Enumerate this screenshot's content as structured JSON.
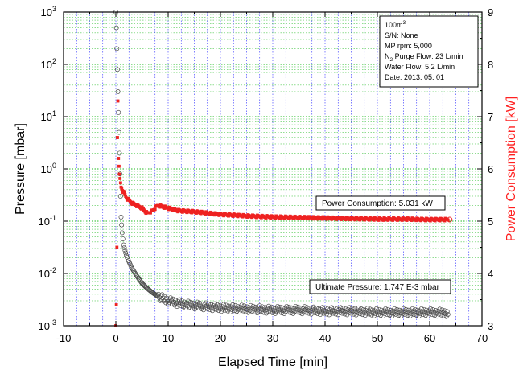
{
  "chart_data": {
    "type": "scatter",
    "xlabel": "Elapsed Time [min]",
    "ylabel_left": "Pressure [mbar]",
    "ylabel_right": "Power Consumption [kW]",
    "xlim": [
      -10,
      70
    ],
    "x_ticks": [
      "-10",
      "0",
      "10",
      "20",
      "30",
      "40",
      "50",
      "60",
      "70"
    ],
    "ylim_left": [
      0.001,
      1000
    ],
    "y_scale_left": "log",
    "y_ticks_left": [
      {
        "base": "10",
        "exp": "3"
      },
      {
        "base": "10",
        "exp": "2"
      },
      {
        "base": "10",
        "exp": "1"
      },
      {
        "base": "10",
        "exp": "0"
      },
      {
        "base": "10",
        "exp": "-1"
      },
      {
        "base": "10",
        "exp": "-2"
      },
      {
        "base": "10",
        "exp": "-3"
      }
    ],
    "ylim_right": [
      3,
      9
    ],
    "y_ticks_right": [
      "9",
      "8",
      "7",
      "6",
      "5",
      "4",
      "3"
    ],
    "grid": true,
    "colors": {
      "pressure": "#4a4a4a",
      "power": "#ee2222",
      "grid_x": "#2a2aff",
      "grid_y": "#22bb22",
      "ylabel_right": "#ff2020"
    },
    "series": [
      {
        "name": "Pressure",
        "axis": "left",
        "marker": "open-circle",
        "points": [
          [
            0.0,
            1000
          ],
          [
            0.1,
            500
          ],
          [
            0.2,
            200
          ],
          [
            0.3,
            80
          ],
          [
            0.4,
            30
          ],
          [
            0.5,
            12
          ],
          [
            0.6,
            5
          ],
          [
            0.7,
            2
          ],
          [
            0.8,
            0.8
          ],
          [
            0.9,
            0.3
          ],
          [
            1.0,
            0.12
          ],
          [
            1.2,
            0.06
          ],
          [
            1.5,
            0.035
          ],
          [
            2,
            0.022
          ],
          [
            3,
            0.013
          ],
          [
            4,
            0.009
          ],
          [
            5,
            0.0065
          ],
          [
            6,
            0.0052
          ],
          [
            7,
            0.0043
          ],
          [
            8,
            0.0037
          ],
          [
            9,
            0.0033
          ],
          [
            10,
            0.003
          ],
          [
            12,
            0.0027
          ],
          [
            14,
            0.0025
          ],
          [
            16,
            0.0024
          ],
          [
            18,
            0.0023
          ],
          [
            20,
            0.0022
          ],
          [
            25,
            0.0021
          ],
          [
            30,
            0.002
          ],
          [
            35,
            0.002
          ],
          [
            40,
            0.0019
          ],
          [
            45,
            0.0019
          ],
          [
            50,
            0.0018
          ],
          [
            55,
            0.0018
          ],
          [
            60,
            0.0018
          ],
          [
            63.5,
            0.00175
          ]
        ]
      },
      {
        "name": "Power Consumption",
        "axis": "right",
        "marker": "square",
        "points": [
          [
            0.0,
            3.0
          ],
          [
            0.1,
            3.4
          ],
          [
            0.2,
            4.5
          ],
          [
            0.3,
            6.6
          ],
          [
            0.4,
            7.3
          ],
          [
            0.5,
            6.2
          ],
          [
            0.7,
            5.9
          ],
          [
            1,
            5.65
          ],
          [
            2,
            5.45
          ],
          [
            3,
            5.35
          ],
          [
            4,
            5.3
          ],
          [
            5,
            5.25
          ],
          [
            6,
            5.15
          ],
          [
            7,
            5.2
          ],
          [
            8,
            5.3
          ],
          [
            10,
            5.25
          ],
          [
            12,
            5.2
          ],
          [
            15,
            5.18
          ],
          [
            18,
            5.15
          ],
          [
            20,
            5.13
          ],
          [
            25,
            5.1
          ],
          [
            30,
            5.08
          ],
          [
            35,
            5.07
          ],
          [
            40,
            5.06
          ],
          [
            45,
            5.05
          ],
          [
            50,
            5.04
          ],
          [
            55,
            5.04
          ],
          [
            60,
            5.03
          ],
          [
            63.5,
            5.03
          ]
        ]
      }
    ],
    "annotations": {
      "info_box": [
        {
          "text": "100m",
          "sup": "3"
        },
        {
          "text": "S/N: None"
        },
        {
          "text": "MP rpm: 5,000"
        },
        {
          "text": "N",
          "sub": "2",
          "after": " Purge Flow: 23 L/min"
        },
        {
          "text": "Water Flow: 5.2 L/min"
        },
        {
          "text": "Date: 2013. 05. 01"
        }
      ],
      "power_callout": "Power Consumption: 5.031 kW",
      "pressure_callout": "Ultimate Pressure: 1.747 E-3 mbar"
    }
  }
}
